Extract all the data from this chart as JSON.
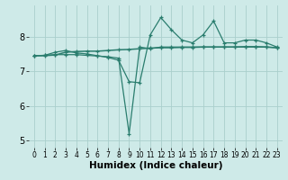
{
  "x": [
    0,
    1,
    2,
    3,
    4,
    5,
    6,
    7,
    8,
    9,
    10,
    11,
    12,
    13,
    14,
    15,
    16,
    17,
    18,
    19,
    20,
    21,
    22,
    23
  ],
  "line1": [
    7.45,
    7.45,
    7.47,
    7.55,
    7.57,
    7.58,
    7.58,
    7.6,
    7.62,
    7.63,
    7.65,
    7.67,
    7.68,
    7.68,
    7.69,
    7.69,
    7.7,
    7.7,
    7.7,
    7.7,
    7.71,
    7.71,
    7.7,
    7.68
  ],
  "line2": [
    7.45,
    7.46,
    7.55,
    7.6,
    7.53,
    7.5,
    7.45,
    7.4,
    7.32,
    6.7,
    6.67,
    8.05,
    8.55,
    8.2,
    7.9,
    7.82,
    8.05,
    8.45,
    7.82,
    7.82,
    7.9,
    7.9,
    7.82,
    7.7
  ],
  "line3": [
    7.45,
    7.46,
    7.48,
    7.48,
    7.48,
    7.46,
    7.44,
    7.42,
    7.38,
    5.2,
    7.7,
    7.65,
    7.7,
    7.7,
    7.7,
    7.7,
    7.7,
    7.7,
    7.7,
    7.7,
    7.7,
    7.7,
    7.7,
    7.68
  ],
  "color": "#2a7d6e",
  "bg_color": "#ceeae8",
  "grid_color": "#aacfcc",
  "xlabel": "Humidex (Indice chaleur)",
  "xlabel_fontsize": 7.5,
  "tick_fontsize": 5.5,
  "ytick_fontsize": 7.0,
  "ylim": [
    4.8,
    8.9
  ],
  "xlim": [
    -0.5,
    23.5
  ],
  "yticks": [
    5,
    6,
    7,
    8
  ],
  "xticks": [
    0,
    1,
    2,
    3,
    4,
    5,
    6,
    7,
    8,
    9,
    10,
    11,
    12,
    13,
    14,
    15,
    16,
    17,
    18,
    19,
    20,
    21,
    22,
    23
  ]
}
